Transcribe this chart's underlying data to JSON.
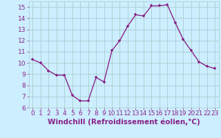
{
  "x": [
    0,
    1,
    2,
    3,
    4,
    5,
    6,
    7,
    8,
    9,
    10,
    11,
    12,
    13,
    14,
    15,
    16,
    17,
    18,
    19,
    20,
    21,
    22,
    23
  ],
  "y": [
    10.3,
    10.0,
    9.3,
    8.9,
    8.9,
    7.1,
    6.6,
    6.6,
    8.7,
    8.3,
    11.1,
    12.0,
    13.3,
    14.3,
    14.2,
    15.1,
    15.1,
    15.2,
    13.6,
    12.1,
    11.1,
    10.1,
    9.7,
    9.5
  ],
  "line_color": "#882288",
  "marker": "+",
  "marker_color": "#882288",
  "bg_color": "#cceeff",
  "grid_color": "#aacccc",
  "xlabel": "Windchill (Refroidissement éolien,°C)",
  "xlabel_color": "#882288",
  "ylim": [
    6,
    15.5
  ],
  "xlim": [
    -0.5,
    23.5
  ],
  "yticks": [
    6,
    7,
    8,
    9,
    10,
    11,
    12,
    13,
    14,
    15
  ],
  "xticks": [
    0,
    1,
    2,
    3,
    4,
    5,
    6,
    7,
    8,
    9,
    10,
    11,
    12,
    13,
    14,
    15,
    16,
    17,
    18,
    19,
    20,
    21,
    22,
    23
  ],
  "tick_label_color": "#882288",
  "tick_label_fontsize": 6.5,
  "xlabel_fontsize": 7.5,
  "linewidth": 1.0,
  "markersize": 3.5
}
